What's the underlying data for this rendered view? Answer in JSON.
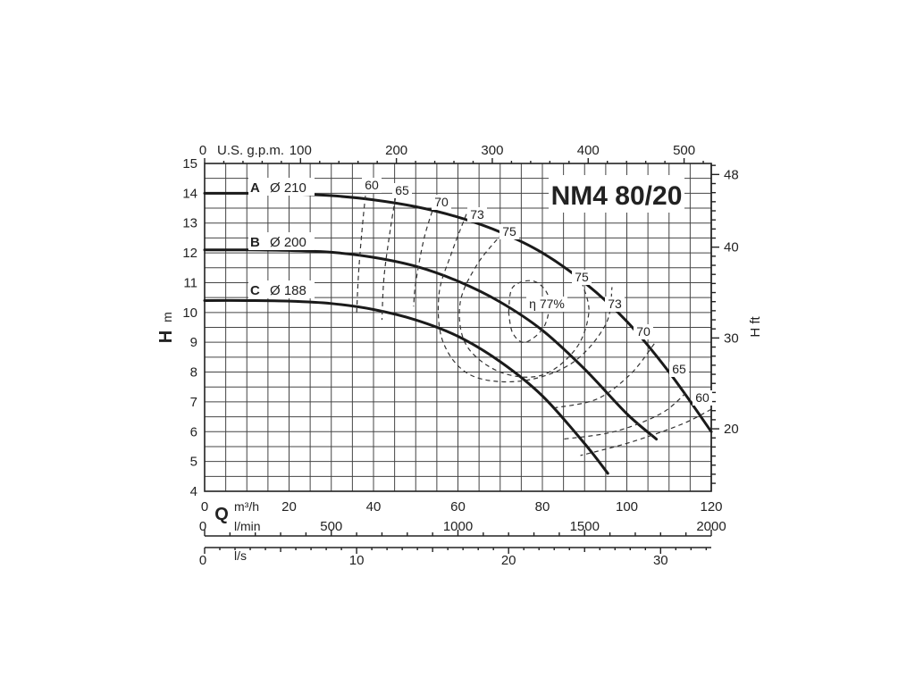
{
  "chart_data": {
    "type": "line",
    "title": "NM4 80/20",
    "x_axis": {
      "symbol": "Q",
      "unit": "m³/h",
      "range": [
        0,
        120
      ],
      "ticks": [
        0,
        20,
        40,
        60,
        80,
        100,
        120
      ]
    },
    "x_axis_lmin": {
      "unit": "l/min",
      "range": [
        0,
        2000
      ],
      "ticks": [
        0,
        500,
        1000,
        1500,
        2000
      ]
    },
    "x_axis_ls": {
      "unit": "l/s",
      "range": [
        0,
        33.33
      ],
      "ticks": [
        0,
        10,
        20,
        30
      ]
    },
    "x_axis_top": {
      "unit": "U.S. g.p.m.",
      "range": [
        0,
        528
      ],
      "ticks": [
        0,
        100,
        200,
        300,
        400,
        500
      ]
    },
    "y_axis": {
      "symbol": "H",
      "unit": "m",
      "range": [
        4,
        15
      ],
      "ticks": [
        4,
        5,
        6,
        7,
        8,
        9,
        10,
        11,
        12,
        13,
        14,
        15
      ]
    },
    "y_axis_right": {
      "label": "H ft",
      "range": [
        13.12,
        49.21
      ],
      "ticks": [
        20,
        30,
        40,
        48
      ]
    },
    "grid": true,
    "series": [
      {
        "name": "A",
        "diameter": "Ø 210",
        "x": [
          0,
          10,
          20,
          30,
          40,
          50,
          60,
          70,
          80,
          90,
          100,
          110,
          120
        ],
        "y": [
          14.0,
          14.0,
          13.98,
          13.92,
          13.78,
          13.55,
          13.2,
          12.7,
          12.0,
          11.0,
          9.7,
          8.0,
          6.0
        ]
      },
      {
        "name": "B",
        "diameter": "Ø 200",
        "x": [
          0,
          10,
          20,
          30,
          40,
          50,
          60,
          70,
          80,
          90,
          100,
          107
        ],
        "y": [
          12.1,
          12.1,
          12.08,
          12.02,
          11.85,
          11.55,
          11.05,
          10.35,
          9.4,
          8.1,
          6.6,
          5.75
        ]
      },
      {
        "name": "C",
        "diameter": "Ø 188",
        "x": [
          0,
          10,
          20,
          30,
          40,
          50,
          60,
          70,
          80,
          90,
          95.5
        ],
        "y": [
          10.4,
          10.4,
          10.38,
          10.3,
          10.1,
          9.75,
          9.2,
          8.35,
          7.2,
          5.6,
          4.6
        ]
      }
    ],
    "efficiency_labels": [
      "60",
      "65",
      "70",
      "73",
      "75",
      "η 77%"
    ],
    "efficiency_curves_left": [
      {
        "label": "60",
        "x": [
          38.5,
          37.5,
          36.5,
          36.0
        ],
        "y": [
          14.45,
          13.1,
          11.4,
          9.95
        ]
      },
      {
        "label": "65",
        "x": [
          45.5,
          44.0,
          42.5,
          42.0
        ],
        "y": [
          14.1,
          12.8,
          11.2,
          9.75
        ]
      },
      {
        "label": "70",
        "x": [
          54.5,
          52.0,
          50.0,
          49.5
        ],
        "y": [
          13.65,
          12.5,
          11.0,
          10.2
        ]
      }
    ],
    "efficiency_curves_right": [
      {
        "label": "70",
        "x": [
          106.5,
          101.0,
          93.0,
          83.0
        ],
        "y": [
          8.95,
          7.95,
          7.1,
          6.8
        ]
      },
      {
        "label": "65",
        "x": [
          114.0,
          108.0,
          97.0,
          85.0
        ],
        "y": [
          7.3,
          6.6,
          6.0,
          5.75
        ]
      },
      {
        "label": "60",
        "x": [
          120.0,
          113.0,
          101.0,
          89.0
        ],
        "y": [
          6.75,
          6.25,
          5.65,
          5.2
        ]
      }
    ],
    "efficiency_closed_curves": [
      {
        "label": "73",
        "points": [
          [
            62.0,
            13.3
          ],
          [
            58.5,
            12.0
          ],
          [
            55.5,
            10.6
          ],
          [
            56.5,
            9.0
          ],
          [
            63.0,
            7.9
          ],
          [
            75.0,
            7.7
          ],
          [
            87.0,
            8.3
          ],
          [
            95.0,
            9.6
          ],
          [
            96.5,
            10.85
          ]
        ]
      },
      {
        "label": "75",
        "points": [
          [
            70.5,
            12.65
          ],
          [
            64.5,
            11.6
          ],
          [
            60.5,
            10.3
          ],
          [
            62.0,
            8.9
          ],
          [
            70.0,
            8.0
          ],
          [
            80.0,
            7.9
          ],
          [
            88.0,
            8.8
          ],
          [
            91.0,
            10.0
          ],
          [
            89.5,
            10.95
          ]
        ]
      },
      {
        "label": "η 77%",
        "points": [
          [
            72.0,
            10.0
          ],
          [
            73.0,
            10.85
          ],
          [
            78.0,
            11.05
          ],
          [
            81.5,
            10.5
          ],
          [
            80.5,
            9.55
          ],
          [
            76.0,
            9.0
          ],
          [
            73.0,
            9.3
          ],
          [
            72.0,
            10.0
          ]
        ]
      }
    ]
  }
}
